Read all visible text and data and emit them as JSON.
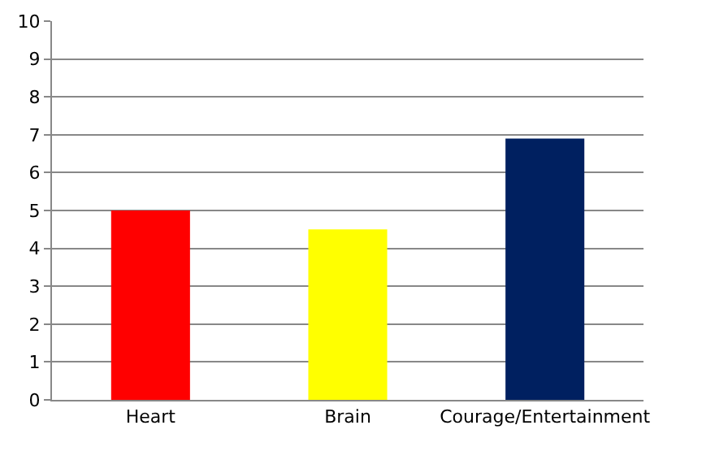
{
  "chart_data": {
    "type": "bar",
    "categories": [
      "Heart",
      "Brain",
      "Courage/Entertainment"
    ],
    "values": [
      5,
      4.5,
      6.9
    ],
    "colors": [
      "#ff0000",
      "#ffff00",
      "#002060"
    ],
    "ylim": [
      0,
      10
    ],
    "yticks": [
      0,
      1,
      2,
      3,
      4,
      5,
      6,
      7,
      8,
      9,
      10
    ],
    "grid": "y"
  }
}
